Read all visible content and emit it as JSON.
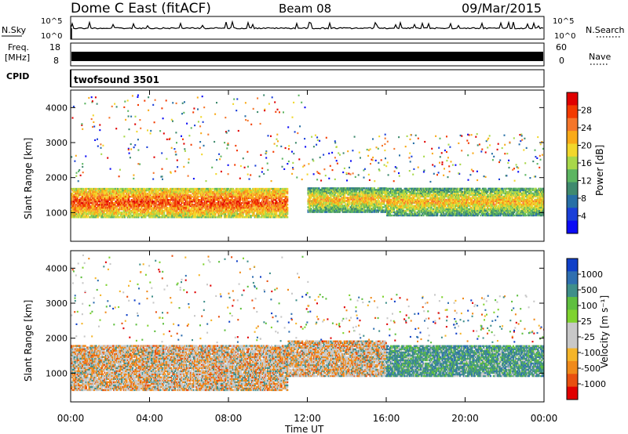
{
  "header": {
    "station": "Dome C East (fitACF)",
    "beam": "Beam 08",
    "date": "09/Mar/2015"
  },
  "status_panels": {
    "nsky": {
      "label": "N.Sky",
      "tick_top": "10^5",
      "tick_bottom": "10^0"
    },
    "nsearch": {
      "label": "N.Search",
      "tick_top": "10^5",
      "tick_bottom": "10^0"
    },
    "freq": {
      "label_line1": "Freq.",
      "label_line2": "[MHz]",
      "tick_top": "18",
      "tick_bottom": "8"
    },
    "nave": {
      "label": "Nave",
      "tick_top": "60",
      "tick_bottom": "0"
    },
    "cpid": {
      "label": "CPID",
      "value": "twofsound 3501"
    }
  },
  "chart_data": [
    {
      "type": "heatmap",
      "name": "power",
      "ylabel": "Slant Range [km]",
      "yticks": [
        "1000",
        "2000",
        "3000",
        "4000"
      ],
      "ytick_values": [
        1000,
        2000,
        3000,
        4000
      ],
      "ylim": [
        180,
        4500
      ],
      "xlim": [
        0,
        24
      ],
      "colorbar": {
        "label": "Power [dB]",
        "ticks": [
          "28",
          "24",
          "20",
          "16",
          "12",
          "8",
          "4"
        ],
        "colors": [
          "#e00000",
          "#f33a00",
          "#f5762b",
          "#f9aa18",
          "#f2d72c",
          "#a8d84a",
          "#5cb561",
          "#3f8a6e",
          "#276fa6",
          "#1a3fd8",
          "#0b0bf5"
        ]
      },
      "dominant_bands": [
        {
          "from": 0,
          "to": 11,
          "range": [
            850,
            1700
          ],
          "level_db": 24
        },
        {
          "from": 12,
          "to": 16,
          "range": [
            1000,
            1700
          ],
          "level_db": 20
        },
        {
          "from": 16,
          "to": 24,
          "range": [
            900,
            1700
          ],
          "level_db": 18
        }
      ]
    },
    {
      "type": "heatmap",
      "name": "velocity",
      "ylabel": "Slant Range [km]",
      "yticks": [
        "1000",
        "2000",
        "3000",
        "4000"
      ],
      "ytick_values": [
        1000,
        2000,
        3000,
        4000
      ],
      "ylim": [
        180,
        4500
      ],
      "xlim": [
        0,
        24
      ],
      "colorbar": {
        "label": "Velocity [m s⁻¹]",
        "ticks": [
          "1000",
          "500",
          "100",
          "25",
          "-25",
          "-100",
          "-500",
          "-1000"
        ],
        "colors": [
          "#1040c8",
          "#2f6fb0",
          "#3f8f8a",
          "#5fbf3f",
          "#7fd32f",
          "#c8c8c8",
          "#c8c8c8",
          "#f5b52a",
          "#f08a1a",
          "#e85010",
          "#e00000"
        ]
      },
      "dominant_bands": [
        {
          "from": 0,
          "to": 11,
          "range": [
            500,
            1800
          ],
          "velocity": -100
        },
        {
          "from": 11,
          "to": 16,
          "range": [
            900,
            1900
          ],
          "velocity": -200
        },
        {
          "from": 16,
          "to": 24,
          "range": [
            900,
            1800
          ],
          "velocity": 100
        }
      ]
    }
  ],
  "x_axis": {
    "label": "Time UT",
    "ticks": [
      "00:00",
      "04:00",
      "08:00",
      "12:00",
      "16:00",
      "20:00",
      "00:00"
    ],
    "tick_hours": [
      0,
      4,
      8,
      12,
      16,
      20,
      24
    ]
  }
}
